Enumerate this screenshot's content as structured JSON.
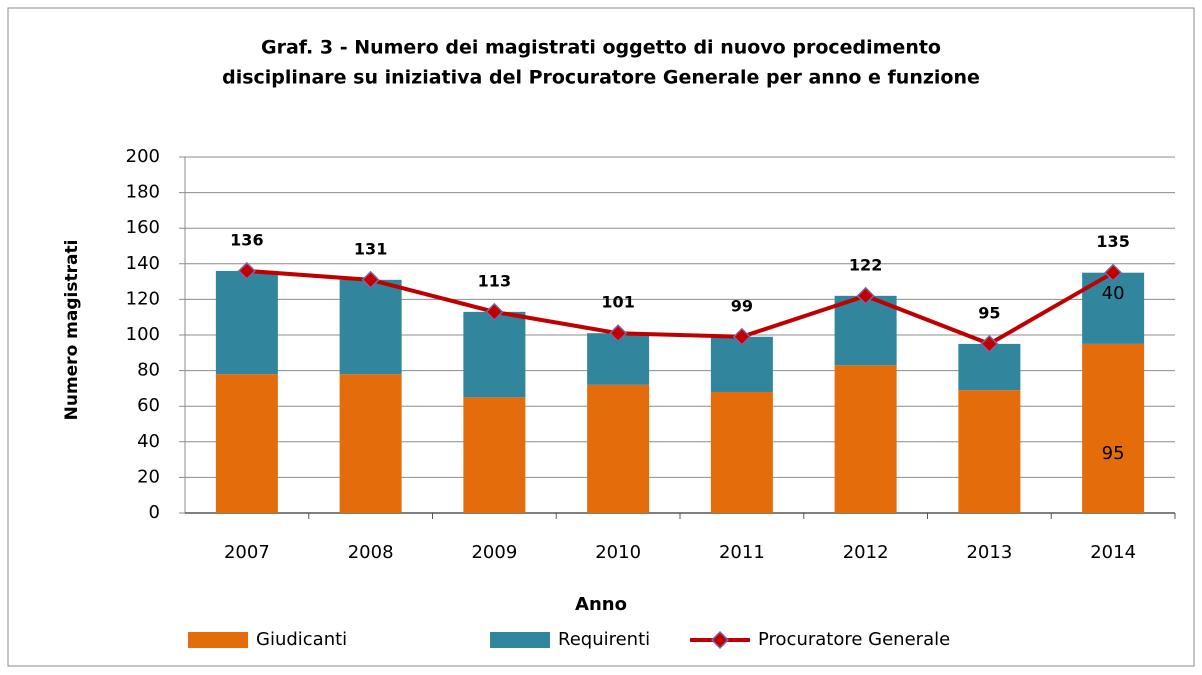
{
  "chart_data": {
    "type": "bar",
    "title": [
      "Graf. 3 - Numero dei magistrati oggetto di nuovo procedimento",
      "disciplinare su iniziativa  del Procuratore Generale per anno e funzione"
    ],
    "x_label": "Anno",
    "y_label": "Numero magistrati",
    "categories": [
      "2007",
      "2008",
      "2009",
      "2010",
      "2011",
      "2012",
      "2013",
      "2014"
    ],
    "series": [
      {
        "name": "Giudicanti",
        "type": "bar",
        "color": "#e46c0a",
        "values": [
          78,
          78,
          65,
          72,
          68,
          83,
          69,
          95
        ]
      },
      {
        "name": "Requirenti",
        "type": "bar",
        "color": "#31859c",
        "values": [
          58,
          53,
          48,
          29,
          31,
          39,
          26,
          40
        ]
      },
      {
        "name": "Procuratore Generale",
        "type": "line",
        "color": "#c00000",
        "marker_color": "#8064a2",
        "values": [
          136,
          131,
          113,
          101,
          99,
          122,
          95,
          135
        ]
      }
    ],
    "stacked": true,
    "ylim": [
      0,
      200
    ],
    "yticks": [
      0,
      20,
      40,
      60,
      80,
      100,
      120,
      140,
      160,
      180,
      200
    ],
    "grid": true,
    "legend": "bottom"
  }
}
